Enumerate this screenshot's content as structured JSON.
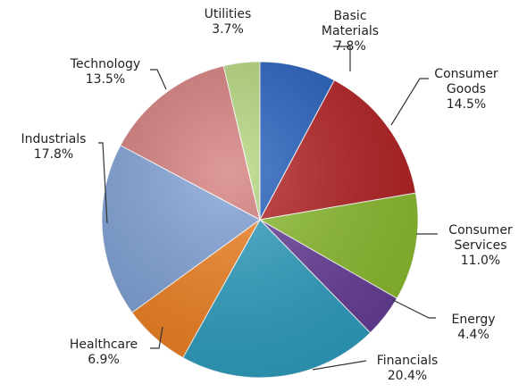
{
  "chart_data": {
    "type": "pie",
    "categories": [
      "Basic Materials",
      "Consumer Goods",
      "Consumer Services",
      "Energy",
      "Financials",
      "Healthcare",
      "Industrials",
      "Technology",
      "Utilities"
    ],
    "values": [
      7.8,
      14.5,
      11.0,
      4.4,
      20.4,
      6.9,
      17.8,
      13.5,
      3.7
    ],
    "value_labels": [
      "7.8%",
      "14.5%",
      "11.0%",
      "4.4%",
      "20.4%",
      "6.9%",
      "17.8%",
      "13.5%",
      "3.7%"
    ],
    "colors": [
      "#1f5cbd",
      "#b31d1f",
      "#8bbd2c",
      "#663c99",
      "#2b9ec0",
      "#f07f1e",
      "#7d9fd6",
      "#d47a78",
      "#b3d67a"
    ]
  }
}
